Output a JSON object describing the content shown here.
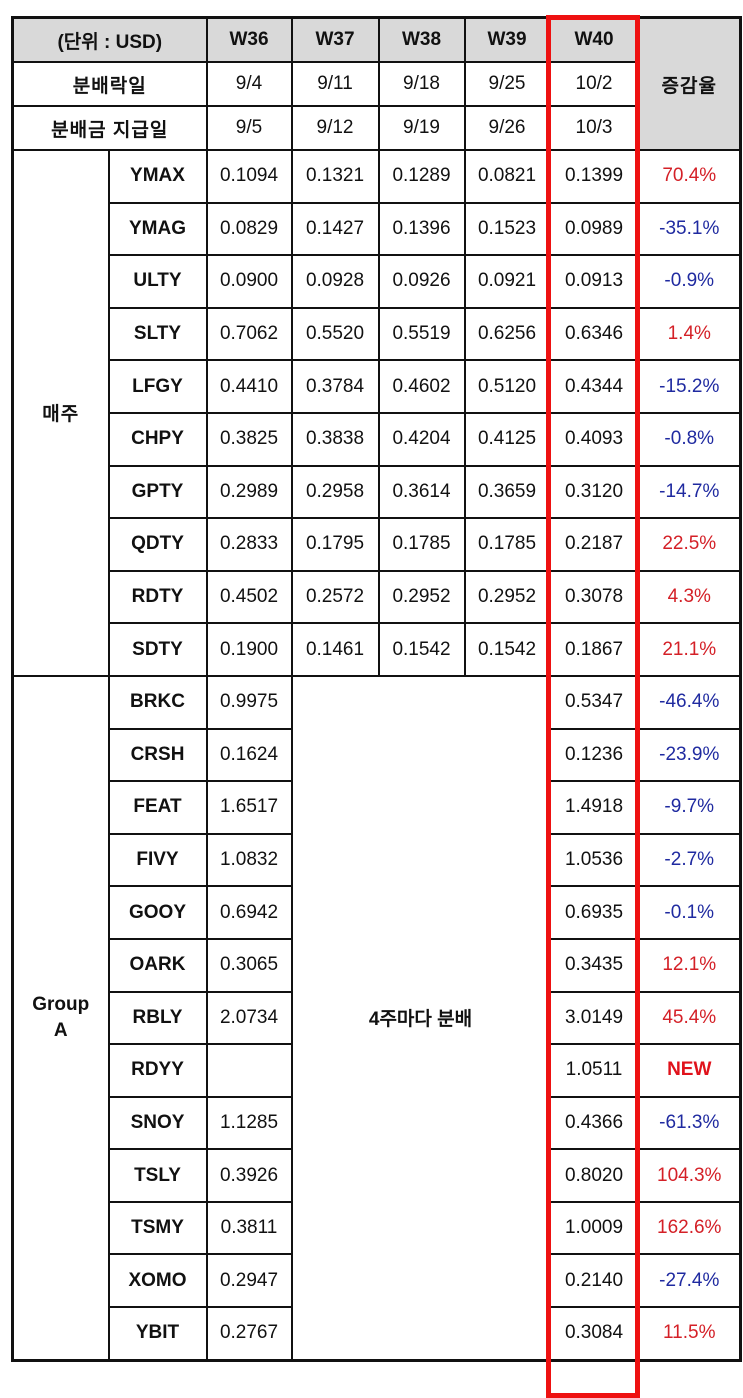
{
  "header": {
    "unit_label": "(단위 : USD)",
    "weeks": [
      "W36",
      "W37",
      "W38",
      "W39",
      "W40"
    ],
    "ex_date_label": "분배락일",
    "ex_dates": [
      "9/4",
      "9/11",
      "9/18",
      "9/25",
      "10/2"
    ],
    "pay_date_label": "분배금 지급일",
    "pay_dates": [
      "9/5",
      "9/12",
      "9/19",
      "9/26",
      "10/3"
    ],
    "change_label": "증감율"
  },
  "groups": {
    "weekly": {
      "label": "매주",
      "rows": [
        {
          "ticker": "YMAX",
          "values": [
            "0.1094",
            "0.1321",
            "0.1289",
            "0.0821",
            "0.1399"
          ],
          "change": "70.4%",
          "trend": "pos"
        },
        {
          "ticker": "YMAG",
          "values": [
            "0.0829",
            "0.1427",
            "0.1396",
            "0.1523",
            "0.0989"
          ],
          "change": "-35.1%",
          "trend": "neg"
        },
        {
          "ticker": "ULTY",
          "values": [
            "0.0900",
            "0.0928",
            "0.0926",
            "0.0921",
            "0.0913"
          ],
          "change": "-0.9%",
          "trend": "neg"
        },
        {
          "ticker": "SLTY",
          "values": [
            "0.7062",
            "0.5520",
            "0.5519",
            "0.6256",
            "0.6346"
          ],
          "change": "1.4%",
          "trend": "pos"
        },
        {
          "ticker": "LFGY",
          "values": [
            "0.4410",
            "0.3784",
            "0.4602",
            "0.5120",
            "0.4344"
          ],
          "change": "-15.2%",
          "trend": "neg"
        },
        {
          "ticker": "CHPY",
          "values": [
            "0.3825",
            "0.3838",
            "0.4204",
            "0.4125",
            "0.4093"
          ],
          "change": "-0.8%",
          "trend": "neg"
        },
        {
          "ticker": "GPTY",
          "values": [
            "0.2989",
            "0.2958",
            "0.3614",
            "0.3659",
            "0.3120"
          ],
          "change": "-14.7%",
          "trend": "neg"
        },
        {
          "ticker": "QDTY",
          "values": [
            "0.2833",
            "0.1795",
            "0.1785",
            "0.1785",
            "0.2187"
          ],
          "change": "22.5%",
          "trend": "pos"
        },
        {
          "ticker": "RDTY",
          "values": [
            "0.4502",
            "0.2572",
            "0.2952",
            "0.2952",
            "0.3078"
          ],
          "change": "4.3%",
          "trend": "pos"
        },
        {
          "ticker": "SDTY",
          "values": [
            "0.1900",
            "0.1461",
            "0.1542",
            "0.1542",
            "0.1867"
          ],
          "change": "21.1%",
          "trend": "pos"
        }
      ]
    },
    "group_a": {
      "label_line1": "Group",
      "label_line2": "A",
      "merged_note": "4주마다 분배",
      "rows": [
        {
          "ticker": "BRKC",
          "w36": "0.9975",
          "w40": "0.5347",
          "change": "-46.4%",
          "trend": "neg"
        },
        {
          "ticker": "CRSH",
          "w36": "0.1624",
          "w40": "0.1236",
          "change": "-23.9%",
          "trend": "neg"
        },
        {
          "ticker": "FEAT",
          "w36": "1.6517",
          "w40": "1.4918",
          "change": "-9.7%",
          "trend": "neg"
        },
        {
          "ticker": "FIVY",
          "w36": "1.0832",
          "w40": "1.0536",
          "change": "-2.7%",
          "trend": "neg"
        },
        {
          "ticker": "GOOY",
          "w36": "0.6942",
          "w40": "0.6935",
          "change": "-0.1%",
          "trend": "neg"
        },
        {
          "ticker": "OARK",
          "w36": "0.3065",
          "w40": "0.3435",
          "change": "12.1%",
          "trend": "pos"
        },
        {
          "ticker": "RBLY",
          "w36": "2.0734",
          "w40": "3.0149",
          "change": "45.4%",
          "trend": "pos"
        },
        {
          "ticker": "RDYY",
          "w36": "",
          "w40": "1.0511",
          "change": "NEW",
          "trend": "new"
        },
        {
          "ticker": "SNOY",
          "w36": "1.1285",
          "w40": "0.4366",
          "change": "-61.3%",
          "trend": "neg"
        },
        {
          "ticker": "TSLY",
          "w36": "0.3926",
          "w40": "0.8020",
          "change": "104.3%",
          "trend": "pos"
        },
        {
          "ticker": "TSMY",
          "w36": "0.3811",
          "w40": "1.0009",
          "change": "162.6%",
          "trend": "pos"
        },
        {
          "ticker": "XOMO",
          "w36": "0.2947",
          "w40": "0.2140",
          "change": "-27.4%",
          "trend": "neg"
        },
        {
          "ticker": "YBIT",
          "w36": "0.2767",
          "w40": "0.3084",
          "change": "11.5%",
          "trend": "pos"
        }
      ]
    }
  },
  "colors": {
    "header_bg": "#d9d9d9",
    "highlight_box": "#ee1111",
    "positive": "#d42027",
    "negative": "#1f2aa0",
    "new": "#e0121b"
  }
}
